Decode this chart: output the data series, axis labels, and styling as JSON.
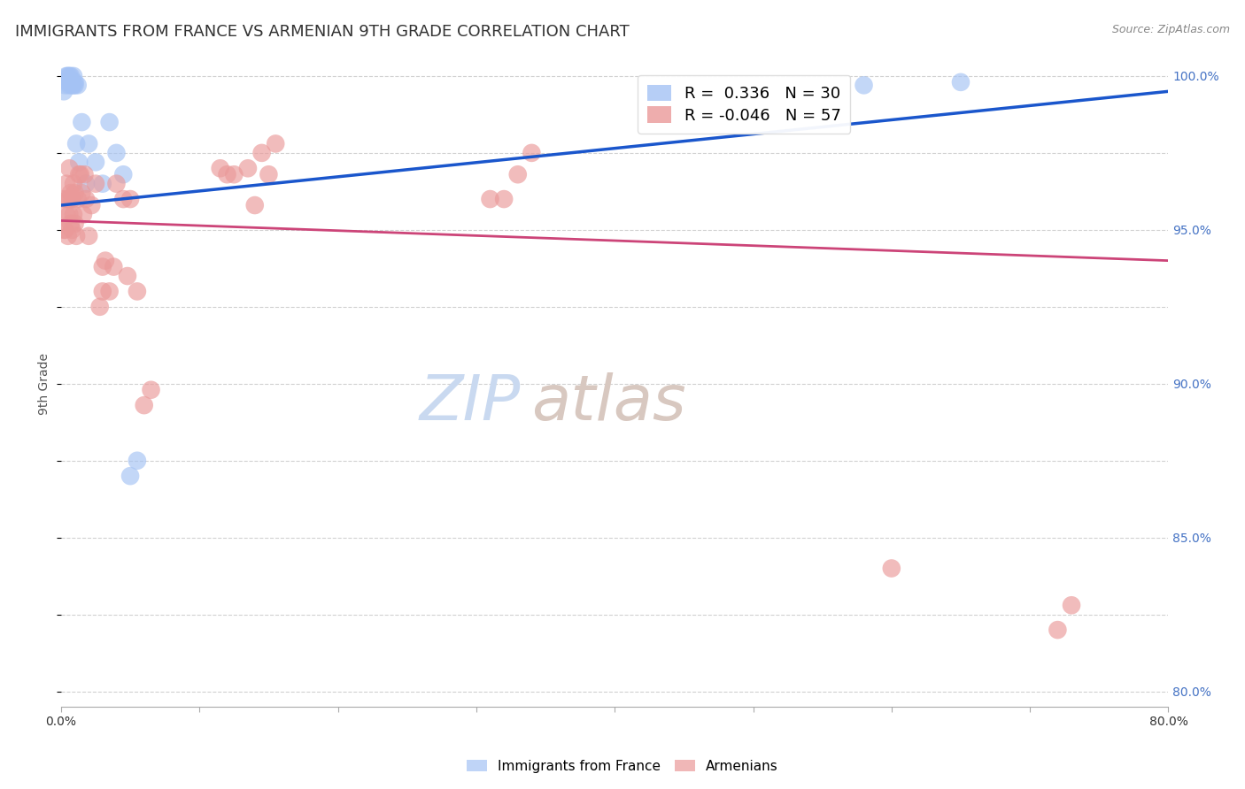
{
  "title": "IMMIGRANTS FROM FRANCE VS ARMENIAN 9TH GRADE CORRELATION CHART",
  "source": "Source: ZipAtlas.com",
  "ylabel": "9th Grade",
  "watermark_top": "ZIP",
  "watermark_bot": "atlas",
  "xlim": [
    0.0,
    0.8
  ],
  "ylim": [
    0.795,
    1.005
  ],
  "xticks": [
    0.0,
    0.1,
    0.2,
    0.3,
    0.4,
    0.5,
    0.6,
    0.7,
    0.8
  ],
  "xticklabels": [
    "0.0%",
    "",
    "",
    "",
    "",
    "",
    "",
    "",
    "80.0%"
  ],
  "yticks": [
    0.8,
    0.85,
    0.9,
    0.95,
    1.0
  ],
  "yticklabels": [
    "80.0%",
    "85.0%",
    "90.0%",
    "95.0%",
    "100.0%"
  ],
  "blue_R": 0.336,
  "blue_N": 30,
  "pink_R": -0.046,
  "pink_N": 57,
  "blue_color": "#a4c2f4",
  "pink_color": "#ea9999",
  "blue_line_color": "#1a56cc",
  "pink_line_color": "#cc4478",
  "blue_scatter_x": [
    0.002,
    0.003,
    0.004,
    0.005,
    0.005,
    0.006,
    0.006,
    0.007,
    0.007,
    0.008,
    0.008,
    0.009,
    0.009,
    0.01,
    0.01,
    0.011,
    0.012,
    0.013,
    0.015,
    0.018,
    0.02,
    0.025,
    0.03,
    0.035,
    0.04,
    0.045,
    0.05,
    0.055,
    0.58,
    0.65
  ],
  "blue_scatter_y": [
    0.995,
    0.997,
    1.0,
    0.998,
    1.0,
    0.997,
    1.0,
    0.998,
    1.0,
    0.997,
    0.998,
    0.997,
    1.0,
    0.998,
    0.997,
    0.978,
    0.997,
    0.972,
    0.985,
    0.965,
    0.978,
    0.972,
    0.965,
    0.985,
    0.975,
    0.968,
    0.87,
    0.875,
    0.997,
    0.998
  ],
  "pink_scatter_x": [
    0.002,
    0.003,
    0.003,
    0.004,
    0.004,
    0.005,
    0.005,
    0.006,
    0.006,
    0.006,
    0.007,
    0.007,
    0.008,
    0.008,
    0.009,
    0.009,
    0.01,
    0.01,
    0.011,
    0.012,
    0.013,
    0.014,
    0.015,
    0.016,
    0.017,
    0.018,
    0.02,
    0.022,
    0.025,
    0.028,
    0.03,
    0.03,
    0.032,
    0.035,
    0.038,
    0.04,
    0.045,
    0.048,
    0.05,
    0.055,
    0.06,
    0.065,
    0.115,
    0.12,
    0.125,
    0.135,
    0.14,
    0.145,
    0.15,
    0.155,
    0.31,
    0.32,
    0.33,
    0.34,
    0.6,
    0.72,
    0.73
  ],
  "pink_scatter_y": [
    0.95,
    0.95,
    0.96,
    0.955,
    0.965,
    0.948,
    0.96,
    0.955,
    0.96,
    0.97,
    0.952,
    0.962,
    0.95,
    0.96,
    0.955,
    0.965,
    0.952,
    0.962,
    0.948,
    0.96,
    0.968,
    0.968,
    0.962,
    0.955,
    0.968,
    0.96,
    0.948,
    0.958,
    0.965,
    0.925,
    0.93,
    0.938,
    0.94,
    0.93,
    0.938,
    0.965,
    0.96,
    0.935,
    0.96,
    0.93,
    0.893,
    0.898,
    0.97,
    0.968,
    0.968,
    0.97,
    0.958,
    0.975,
    0.968,
    0.978,
    0.96,
    0.96,
    0.968,
    0.975,
    0.84,
    0.82,
    0.828
  ],
  "grid_color": "#cccccc",
  "title_fontsize": 13,
  "axis_label_fontsize": 10,
  "tick_fontsize": 10,
  "legend_fontsize": 11,
  "watermark_fontsize_zip": 52,
  "watermark_fontsize_atlas": 52,
  "watermark_color_zip": "#c9d9f0",
  "watermark_color_atlas": "#d8c8c0",
  "background_color": "#ffffff",
  "right_tick_color": "#4472c4",
  "source_color": "#888888",
  "blue_line_x0": 0.0,
  "blue_line_x1": 0.8,
  "blue_line_y0": 0.958,
  "blue_line_y1": 0.995,
  "pink_line_x0": 0.0,
  "pink_line_x1": 0.8,
  "pink_line_y0": 0.953,
  "pink_line_y1": 0.94
}
